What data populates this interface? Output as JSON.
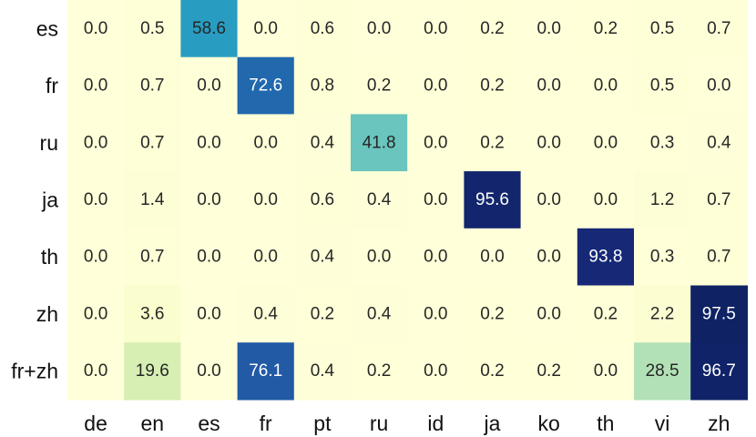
{
  "chart_data": {
    "type": "heatmap",
    "title": "",
    "xlabel": "",
    "ylabel": "",
    "x_categories": [
      "de",
      "en",
      "es",
      "fr",
      "pt",
      "ru",
      "id",
      "ja",
      "ko",
      "th",
      "vi",
      "zh"
    ],
    "y_categories": [
      "es",
      "fr",
      "ru",
      "ja",
      "th",
      "zh",
      "fr+zh"
    ],
    "values": [
      [
        0.0,
        0.5,
        58.6,
        0.0,
        0.6,
        0.0,
        0.0,
        0.2,
        0.0,
        0.2,
        0.5,
        0.7
      ],
      [
        0.0,
        0.7,
        0.0,
        72.6,
        0.8,
        0.2,
        0.0,
        0.2,
        0.0,
        0.0,
        0.5,
        0.0
      ],
      [
        0.0,
        0.7,
        0.0,
        0.0,
        0.4,
        41.8,
        0.0,
        0.2,
        0.0,
        0.0,
        0.3,
        0.4
      ],
      [
        0.0,
        1.4,
        0.0,
        0.0,
        0.6,
        0.4,
        0.0,
        95.6,
        0.0,
        0.0,
        1.2,
        0.7
      ],
      [
        0.0,
        0.7,
        0.0,
        0.0,
        0.4,
        0.0,
        0.0,
        0.0,
        0.0,
        93.8,
        0.3,
        0.7
      ],
      [
        0.0,
        3.6,
        0.0,
        0.4,
        0.2,
        0.4,
        0.0,
        0.2,
        0.0,
        0.2,
        2.2,
        97.5
      ],
      [
        0.0,
        19.6,
        0.0,
        76.1,
        0.4,
        0.2,
        0.0,
        0.2,
        0.2,
        0.0,
        28.5,
        96.7
      ]
    ],
    "value_range": [
      0,
      100
    ],
    "colormap": "YlGnBu",
    "colorbar": false,
    "grid": false,
    "legend": "none"
  }
}
